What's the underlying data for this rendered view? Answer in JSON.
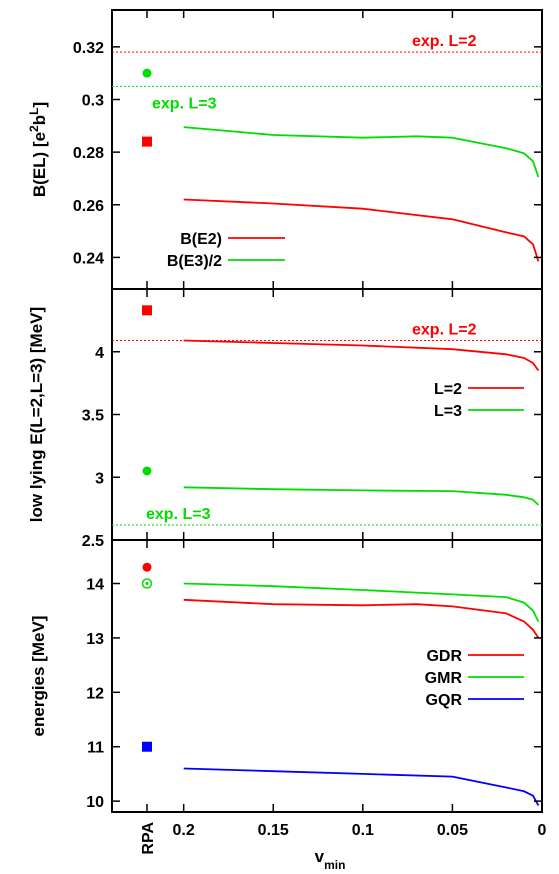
{
  "x_axis": {
    "label": "v",
    "label_sub": "min",
    "rpa_label": "RPA",
    "ticks": [
      {
        "v": 0.2,
        "label": "0.2"
      },
      {
        "v": 0.15,
        "label": "0.15"
      },
      {
        "v": 0.1,
        "label": "0.1"
      },
      {
        "v": 0.05,
        "label": "0.05"
      },
      {
        "v": 0,
        "label": "0"
      }
    ]
  },
  "chart_data": [
    {
      "type": "line",
      "xlim": [
        0.24,
        0
      ],
      "ylim": [
        0.228,
        0.334
      ],
      "ylabel": "B(EL) [e²bᴸ]",
      "ylabel_main": "B(EL) [e",
      "ylabel_sup1": "2",
      "ylabel_mid": "b",
      "ylabel_sup2": "L",
      "ylabel_end": "]",
      "yticks": [
        {
          "v": 0.24,
          "label": "0.24"
        },
        {
          "v": 0.26,
          "label": "0.26"
        },
        {
          "v": 0.28,
          "label": "0.28"
        },
        {
          "v": 0.3,
          "label": "0.3"
        },
        {
          "v": 0.32,
          "label": "0.32"
        }
      ],
      "series": [
        {
          "name": "B(E2)",
          "color": "#ff0000",
          "x": [
            0.2,
            0.15,
            0.1,
            0.05,
            0.02,
            0.01,
            0.005,
            0.002
          ],
          "y": [
            0.262,
            0.2605,
            0.2585,
            0.2545,
            0.2495,
            0.248,
            0.245,
            0.2385
          ]
        },
        {
          "name": "B(E3)/2",
          "color": "#00dd00",
          "x": [
            0.2,
            0.15,
            0.1,
            0.07,
            0.05,
            0.02,
            0.01,
            0.005,
            0.002
          ],
          "y": [
            0.2895,
            0.2865,
            0.2855,
            0.286,
            0.2855,
            0.2815,
            0.2795,
            0.2765,
            0.2705
          ]
        }
      ],
      "rpa_points": [
        {
          "value": 0.284,
          "color": "#ff0000",
          "marker": "square"
        },
        {
          "value": 0.31,
          "color": "#00dd00",
          "marker": "circle"
        }
      ],
      "reference_lines": [
        {
          "value": 0.318,
          "color": "#ff0000",
          "label": "exp. L=2"
        },
        {
          "value": 0.305,
          "color": "#00dd00",
          "label": "exp. L=3"
        }
      ]
    },
    {
      "type": "line",
      "xlim": [
        0.24,
        0
      ],
      "ylim": [
        2.5,
        4.5
      ],
      "ylabel": "low lying E(L=2,L=3) [MeV]",
      "yticks": [
        {
          "v": 2.5,
          "label": "2.5"
        },
        {
          "v": 3,
          "label": "3"
        },
        {
          "v": 3.5,
          "label": "3.5"
        },
        {
          "v": 4,
          "label": "4"
        }
      ],
      "series": [
        {
          "name": "L=2",
          "color": "#ff0000",
          "x": [
            0.2,
            0.15,
            0.1,
            0.05,
            0.02,
            0.01,
            0.005,
            0.002
          ],
          "y": [
            4.09,
            4.07,
            4.05,
            4.02,
            3.98,
            3.95,
            3.91,
            3.85
          ]
        },
        {
          "name": "L=3",
          "color": "#00dd00",
          "x": [
            0.2,
            0.15,
            0.1,
            0.05,
            0.02,
            0.01,
            0.005,
            0.002
          ],
          "y": [
            2.92,
            2.905,
            2.895,
            2.89,
            2.86,
            2.84,
            2.82,
            2.78
          ]
        }
      ],
      "rpa_points": [
        {
          "value": 4.33,
          "color": "#ff0000",
          "marker": "square"
        },
        {
          "value": 3.05,
          "color": "#00dd00",
          "marker": "circle"
        }
      ],
      "reference_lines": [
        {
          "value": 4.09,
          "color": "#ff0000",
          "label": "exp. L=2"
        },
        {
          "value": 2.62,
          "color": "#00dd00",
          "label": "exp. L=3"
        }
      ]
    },
    {
      "type": "line",
      "xlim": [
        0.24,
        0
      ],
      "ylim": [
        9.8,
        14.8
      ],
      "ylabel": "energies [MeV]",
      "yticks": [
        {
          "v": 10,
          "label": "10"
        },
        {
          "v": 11,
          "label": "11"
        },
        {
          "v": 12,
          "label": "12"
        },
        {
          "v": 13,
          "label": "13"
        },
        {
          "v": 14,
          "label": "14"
        }
      ],
      "series": [
        {
          "name": "GDR",
          "color": "#ff0000",
          "x": [
            0.2,
            0.15,
            0.1,
            0.07,
            0.05,
            0.02,
            0.01,
            0.005,
            0.002
          ],
          "y": [
            13.7,
            13.62,
            13.6,
            13.62,
            13.58,
            13.45,
            13.3,
            13.15,
            13.0
          ]
        },
        {
          "name": "GMR",
          "color": "#00dd00",
          "x": [
            0.2,
            0.15,
            0.1,
            0.05,
            0.02,
            0.01,
            0.005,
            0.002
          ],
          "y": [
            14.0,
            13.95,
            13.88,
            13.8,
            13.75,
            13.65,
            13.5,
            13.3
          ]
        },
        {
          "name": "GQR",
          "color": "#0000ff",
          "x": [
            0.2,
            0.15,
            0.1,
            0.05,
            0.02,
            0.01,
            0.005,
            0.002
          ],
          "y": [
            10.6,
            10.55,
            10.5,
            10.45,
            10.25,
            10.18,
            10.1,
            9.92
          ]
        }
      ],
      "rpa_points": [
        {
          "value": 14.3,
          "color": "#ff0000",
          "marker": "circle"
        },
        {
          "value": 14.0,
          "color": "#00dd00",
          "marker": "open-circle"
        },
        {
          "value": 11.0,
          "color": "#0000ff",
          "marker": "square"
        }
      ],
      "reference_lines": []
    }
  ]
}
